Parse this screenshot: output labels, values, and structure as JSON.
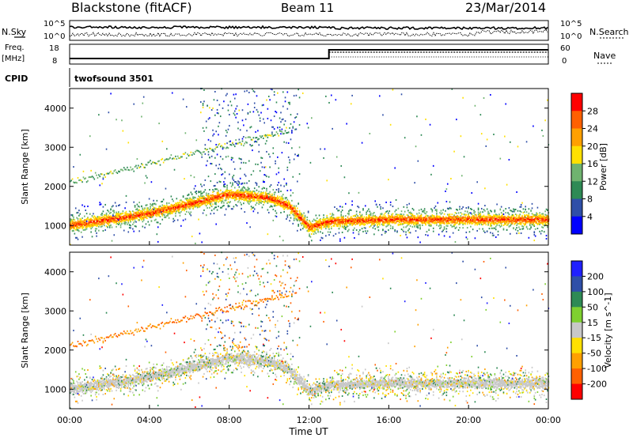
{
  "header": {
    "station": "Blackstone (fitACF)",
    "beam": "Beam 11",
    "date": "23/Mar/2014"
  },
  "top_panels": {
    "nsky_label": "N.Sky",
    "nsearch_label": "N.Search",
    "noise_ticks_left": [
      "10^5",
      "10^0"
    ],
    "noise_ticks_right": [
      "10^5",
      "10^0"
    ],
    "freq_label_1": "Freq.",
    "freq_label_2": "[MHz]",
    "freq_ticks": [
      "18",
      "8"
    ],
    "nave_label": "Nave",
    "nave_ticks": [
      "60",
      "0"
    ],
    "cpid_label": "CPID",
    "cpid_value": "twofsound 3501"
  },
  "colors": {
    "power_scale": [
      "#0000ff",
      "#2f4fa8",
      "#2e8a55",
      "#6fb36f",
      "#ffe000",
      "#ffa000",
      "#ff6000",
      "#ff0000"
    ],
    "velocity_scale": [
      "#2020ff",
      "#2f4fa8",
      "#2e8a55",
      "#7fd030",
      "#c8c8c8",
      "#ffe000",
      "#ffa000",
      "#ff6000",
      "#ff0000"
    ]
  },
  "chart_data": [
    {
      "type": "heatmap",
      "name": "power",
      "ylabel": "Slant Range [km]",
      "yticks": [
        "1000",
        "2000",
        "3000",
        "4000"
      ],
      "ylim": [
        500,
        4500
      ],
      "xlim": [
        0,
        24
      ],
      "colorbar_label": "Power [dB]",
      "colorbar_ticks": [
        "28",
        "24",
        "20",
        "16",
        "12",
        "8",
        "4"
      ],
      "colorbar_range": [
        0,
        32
      ],
      "main_band": {
        "x": [
          0,
          2,
          4,
          6,
          8,
          10,
          11,
          12,
          13,
          16,
          20,
          24
        ],
        "range_km": [
          1000,
          1150,
          1300,
          1550,
          1800,
          1700,
          1500,
          950,
          1100,
          1150,
          1150,
          1150
        ]
      }
    },
    {
      "type": "heatmap",
      "name": "velocity",
      "ylabel": "Slant Range [km]",
      "yticks": [
        "1000",
        "2000",
        "3000",
        "4000"
      ],
      "ylim": [
        500,
        4500
      ],
      "xlim": [
        0,
        24
      ],
      "colorbar_label": "Velocity [m s^-1]",
      "colorbar_ticks": [
        "200",
        "100",
        "50",
        "15",
        "-15",
        "-50",
        "-100",
        "-200"
      ],
      "colorbar_range": [
        -250,
        250
      ]
    }
  ],
  "x_axis": {
    "ticks": [
      "00:00",
      "04:00",
      "08:00",
      "12:00",
      "16:00",
      "20:00",
      "00:00"
    ],
    "label": "Time UT"
  }
}
